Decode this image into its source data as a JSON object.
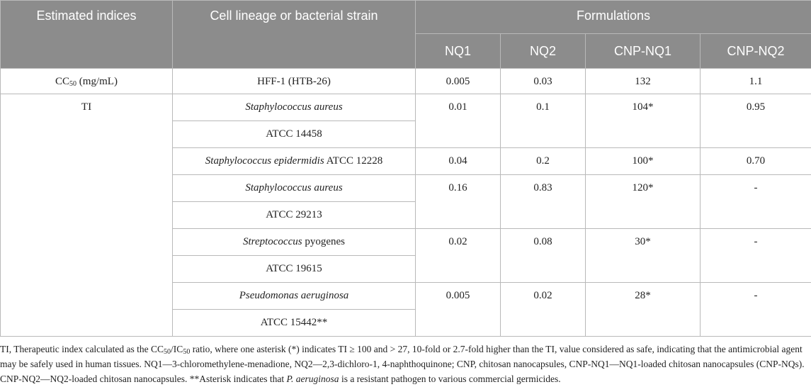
{
  "headers": {
    "estimated_indices": "Estimated indices",
    "cell_lineage": "Cell lineage or bacterial strain",
    "formulations": "Formulations",
    "nq1": "NQ1",
    "nq2": "NQ2",
    "cnp_nq1": "CNP-NQ1",
    "cnp_nq2": "CNP-NQ2"
  },
  "cc50_row": {
    "index_base": "CC",
    "index_sub": "50",
    "index_unit": " (mg/mL)",
    "cell": "HFF-1 (HTB-26)",
    "nq1": "0.005",
    "nq2": "0.03",
    "cnp_nq1": "132",
    "cnp_nq2": "1.1"
  },
  "ti_label": "TI",
  "ti_rows": [
    {
      "species": "Staphylococcus aureus",
      "strain": "ATCC 14458",
      "nq1": "0.01",
      "nq2": "0.1",
      "cnp_nq1": "104*",
      "cnp_nq2": "0.95"
    },
    {
      "species": "Staphylococcus epidermidis",
      "strain": " ATCC 12228",
      "nq1": "0.04",
      "nq2": "0.2",
      "cnp_nq1": "100*",
      "cnp_nq2": "0.70"
    },
    {
      "species": "Staphylococcus aureus",
      "strain": "ATCC 29213",
      "nq1": "0.16",
      "nq2": "0.83",
      "cnp_nq1": "120*",
      "cnp_nq2": "-"
    },
    {
      "species": "Streptococcus",
      "species_rest": " pyogenes",
      "strain": "ATCC 19615",
      "nq1": "0.02",
      "nq2": "0.08",
      "cnp_nq1": "30*",
      "cnp_nq2": "-"
    },
    {
      "species": "Pseudomonas aeruginosa",
      "strain": "ATCC 15442**",
      "nq1": "0.005",
      "nq2": "0.02",
      "cnp_nq1": "28*",
      "cnp_nq2": "-"
    }
  ],
  "footnote": {
    "p1": "TI, Therapeutic index calculated as the CC",
    "s1": "50",
    "p2": "/IC",
    "s2": "50",
    "p3": " ratio, where one asterisk (*) indicates TI ≥ 100 and > 27, 10-fold or 2.7-fold higher than the TI, value considered as safe, indicating that the antimicrobial agent may be safely used in human tissues. NQ1—3-chloromethylene-menadione, NQ2—2,3-dichloro-1, 4-naphthoquinone; CNP, chitosan nanocapsules, CNP-NQ1—NQ1-loaded chitosan nanocapsules (CNP-NQs). CNP-NQ2—NQ2-loaded chitosan nanocapsules. **Asterisk indicates that ",
    "italic": "P. aeruginosa",
    "p4": " is a resistant pathogen to various commercial germicides."
  }
}
